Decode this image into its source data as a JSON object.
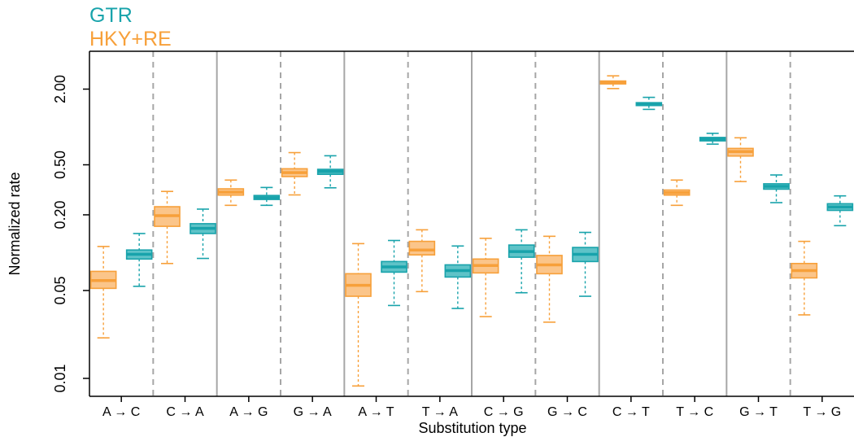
{
  "legend": {
    "gtr": "GTR",
    "hky": "HKY+RE"
  },
  "colors": {
    "gtr": "#18a3ab",
    "gtr_fill": "#5ec3c8",
    "hky": "#f7a03a",
    "hky_fill": "#fbc58a",
    "axis": "#000000",
    "solid_divider": "#a6a6a6",
    "dashed_divider": "#a6a6a6"
  },
  "chart_data": {
    "type": "box",
    "xlabel": "Substitution type",
    "ylabel": "Normalized rate",
    "y_scale": "log",
    "ylim": [
      0.0072,
      4.0
    ],
    "yticks": [
      {
        "value": 0.01,
        "label": "0.01"
      },
      {
        "value": 0.05,
        "label": "0.05"
      },
      {
        "value": 0.2,
        "label": "0.20"
      },
      {
        "value": 0.5,
        "label": "0.50"
      },
      {
        "value": 2.0,
        "label": "2.00"
      }
    ],
    "grid": false,
    "legend_position": "top-left",
    "categories": [
      "A → C",
      "C → A",
      "A → G",
      "G → A",
      "A → T",
      "T → A",
      "C → G",
      "G → C",
      "C → T",
      "T → C",
      "G → T",
      "T → G"
    ],
    "series": [
      {
        "name": "HKY+RE",
        "color_key": "hky",
        "boxes": [
          {
            "whisker_low": 0.021,
            "q1": 0.052,
            "median": 0.06,
            "q3": 0.071,
            "whisker_high": 0.112
          },
          {
            "whisker_low": 0.082,
            "q1": 0.162,
            "median": 0.197,
            "q3": 0.232,
            "whisker_high": 0.307
          },
          {
            "whisker_low": 0.238,
            "q1": 0.287,
            "median": 0.303,
            "q3": 0.322,
            "whisker_high": 0.378
          },
          {
            "whisker_low": 0.288,
            "q1": 0.403,
            "median": 0.433,
            "q3": 0.465,
            "whisker_high": 0.625
          },
          {
            "whisker_low": 0.0087,
            "q1": 0.045,
            "median": 0.055,
            "q3": 0.068,
            "whisker_high": 0.118
          },
          {
            "whisker_low": 0.049,
            "q1": 0.096,
            "median": 0.105,
            "q3": 0.123,
            "whisker_high": 0.152
          },
          {
            "whisker_low": 0.031,
            "q1": 0.069,
            "median": 0.079,
            "q3": 0.089,
            "whisker_high": 0.13
          },
          {
            "whisker_low": 0.028,
            "q1": 0.068,
            "median": 0.08,
            "q3": 0.095,
            "whisker_high": 0.135
          },
          {
            "whisker_low": 2.02,
            "q1": 2.2,
            "median": 2.25,
            "q3": 2.32,
            "whisker_high": 2.55
          },
          {
            "whisker_low": 0.238,
            "q1": 0.287,
            "median": 0.3,
            "q3": 0.315,
            "whisker_high": 0.378
          },
          {
            "whisker_low": 0.368,
            "q1": 0.587,
            "median": 0.637,
            "q3": 0.675,
            "whisker_high": 0.82
          },
          {
            "whisker_low": 0.032,
            "q1": 0.063,
            "median": 0.072,
            "q3": 0.082,
            "whisker_high": 0.123
          }
        ]
      },
      {
        "name": "GTR",
        "color_key": "gtr",
        "boxes": [
          {
            "whisker_low": 0.054,
            "q1": 0.089,
            "median": 0.097,
            "q3": 0.105,
            "whisker_high": 0.142
          },
          {
            "whisker_low": 0.09,
            "q1": 0.142,
            "median": 0.156,
            "q3": 0.17,
            "whisker_high": 0.222
          },
          {
            "whisker_low": 0.238,
            "q1": 0.265,
            "median": 0.274,
            "q3": 0.285,
            "whisker_high": 0.33
          },
          {
            "whisker_low": 0.328,
            "q1": 0.42,
            "median": 0.442,
            "q3": 0.46,
            "whisker_high": 0.59
          },
          {
            "whisker_low": 0.038,
            "q1": 0.07,
            "median": 0.077,
            "q3": 0.085,
            "whisker_high": 0.125
          },
          {
            "whisker_low": 0.036,
            "q1": 0.064,
            "median": 0.072,
            "q3": 0.08,
            "whisker_high": 0.113
          },
          {
            "whisker_low": 0.048,
            "q1": 0.092,
            "median": 0.102,
            "q3": 0.115,
            "whisker_high": 0.152
          },
          {
            "whisker_low": 0.045,
            "q1": 0.085,
            "median": 0.097,
            "q3": 0.11,
            "whisker_high": 0.145
          },
          {
            "whisker_low": 1.38,
            "q1": 1.48,
            "median": 1.52,
            "q3": 1.56,
            "whisker_high": 1.72
          },
          {
            "whisker_low": 0.73,
            "q1": 0.775,
            "median": 0.8,
            "q3": 0.825,
            "whisker_high": 0.89
          },
          {
            "whisker_low": 0.25,
            "q1": 0.32,
            "median": 0.337,
            "q3": 0.353,
            "whisker_high": 0.415
          },
          {
            "whisker_low": 0.164,
            "q1": 0.217,
            "median": 0.231,
            "q3": 0.245,
            "whisker_high": 0.283
          }
        ]
      }
    ]
  }
}
